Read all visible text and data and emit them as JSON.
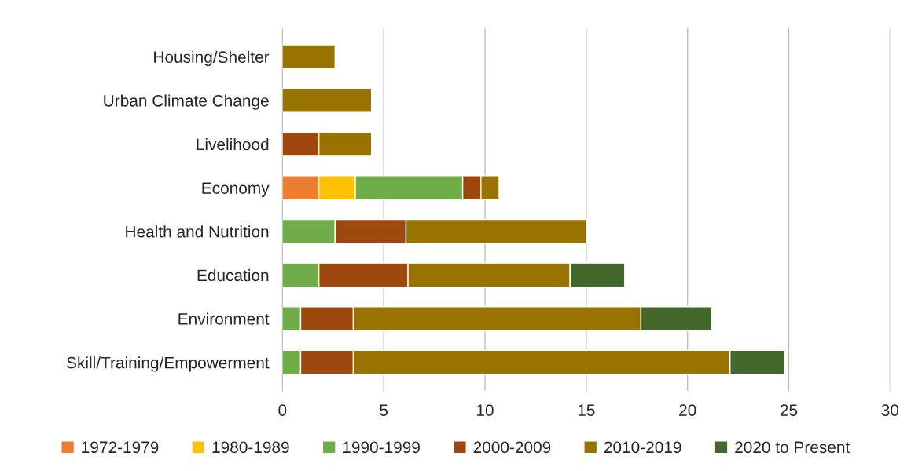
{
  "chart_data": {
    "type": "bar",
    "orientation": "horizontal",
    "stacked": true,
    "categories": [
      "Housing/Shelter",
      "Urban Climate Change",
      "Livelihood",
      "Economy",
      "Health and Nutrition",
      "Education",
      "Environment",
      "Skill/Training/Empowerment"
    ],
    "series": [
      {
        "name": "1972-1979",
        "color": "#ed7d31",
        "values": [
          null,
          null,
          null,
          1.8,
          null,
          null,
          null,
          null
        ]
      },
      {
        "name": "1980-1989",
        "color": "#ffc000",
        "values": [
          null,
          null,
          null,
          1.8,
          null,
          null,
          null,
          null
        ]
      },
      {
        "name": "1990-1999",
        "color": "#70ad47",
        "values": [
          null,
          null,
          null,
          5.3,
          2.6,
          1.8,
          0.9,
          0.9
        ]
      },
      {
        "name": "2000-2009",
        "color": "#9e480e",
        "values": [
          null,
          null,
          1.8,
          0.9,
          3.5,
          4.4,
          2.6,
          2.6
        ]
      },
      {
        "name": "2010-2019",
        "color": "#997300",
        "values": [
          2.6,
          4.4,
          2.6,
          0.9,
          8.9,
          8.0,
          14.2,
          18.6
        ]
      },
      {
        "name": "2020 to Present",
        "color": "#43682b",
        "values": [
          null,
          null,
          null,
          null,
          null,
          2.7,
          3.5,
          2.7
        ]
      }
    ],
    "xlim": [
      0,
      30
    ],
    "xticks": [
      0,
      5,
      10,
      15,
      20,
      25,
      30
    ],
    "grid": "x",
    "legend": "bottom"
  }
}
